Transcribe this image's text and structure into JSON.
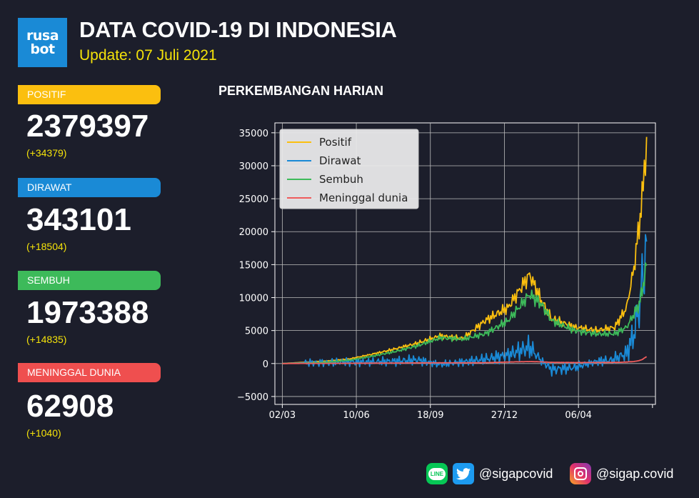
{
  "header": {
    "logo_line1": "rusa",
    "logo_line2": "bot",
    "title": "DATA COVID-19 DI INDONESIA",
    "update": "Update: 07 Juli 2021"
  },
  "stats": [
    {
      "label": "POSITIF",
      "value": "2379397",
      "delta": "(+34379)",
      "color": "#fbbf0f"
    },
    {
      "label": "DIRAWAT",
      "value": "343101",
      "delta": "(+18504)",
      "color": "#1a8ad6"
    },
    {
      "label": "SEMBUH",
      "value": "1973388",
      "delta": "(+14835)",
      "color": "#3dba5a"
    },
    {
      "label": "MENINGGAL DUNIA",
      "value": "62908",
      "delta": "(+1040)",
      "color": "#ef4f4f"
    }
  ],
  "chart_title": "PERKEMBANGAN HARIAN",
  "chart_data": {
    "type": "line",
    "title": "PERKEMBANGAN HARIAN",
    "xlabel": "",
    "ylabel": "",
    "x_start": "2020-03-02",
    "x_end": "2021-07-07",
    "xticks": [
      "02/03",
      "10/06",
      "18/09",
      "27/12",
      "06/04"
    ],
    "ylim": [
      -6200,
      36500
    ],
    "yticks": [
      -5000,
      0,
      5000,
      10000,
      15000,
      20000,
      25000,
      30000,
      35000
    ],
    "grid": true,
    "legend": "top-left",
    "series": [
      {
        "name": "Positif",
        "color": "#fbbf0f",
        "x": [
          "2020-03-02",
          "2020-04-01",
          "2020-05-01",
          "2020-06-01",
          "2020-07-01",
          "2020-08-01",
          "2020-09-01",
          "2020-10-01",
          "2020-11-01",
          "2020-12-01",
          "2021-01-01",
          "2021-01-30",
          "2021-02-15",
          "2021-03-01",
          "2021-04-01",
          "2021-05-01",
          "2021-05-25",
          "2021-06-10",
          "2021-06-20",
          "2021-06-27",
          "2021-07-01",
          "2021-07-07"
        ],
        "y": [
          2,
          200,
          400,
          700,
          1400,
          2200,
          3100,
          4200,
          3800,
          6500,
          8500,
          13500,
          9500,
          6800,
          5500,
          5000,
          5500,
          8500,
          14500,
          21000,
          25000,
          34379
        ]
      },
      {
        "name": "Dirawat",
        "color": "#1a8ad6",
        "x": [
          "2020-03-02",
          "2020-04-01",
          "2020-05-01",
          "2020-06-01",
          "2020-07-01",
          "2020-08-01",
          "2020-09-01",
          "2020-10-01",
          "2020-11-01",
          "2020-12-01",
          "2021-01-01",
          "2021-01-30",
          "2021-02-15",
          "2021-03-01",
          "2021-04-01",
          "2021-05-01",
          "2021-05-20",
          "2021-06-10",
          "2021-06-20",
          "2021-06-27",
          "2021-07-01",
          "2021-07-07"
        ],
        "y": [
          2,
          120,
          150,
          250,
          250,
          350,
          550,
          -150,
          250,
          650,
          1300,
          2500,
          400,
          -900,
          -600,
          350,
          500,
          1500,
          4500,
          8500,
          12000,
          18504
        ]
      },
      {
        "name": "Sembuh",
        "color": "#3dba5a",
        "x": [
          "2020-03-02",
          "2020-04-01",
          "2020-05-01",
          "2020-06-01",
          "2020-07-01",
          "2020-08-01",
          "2020-09-01",
          "2020-10-01",
          "2020-11-01",
          "2020-12-01",
          "2021-01-01",
          "2021-01-30",
          "2021-02-15",
          "2021-03-01",
          "2021-04-01",
          "2021-05-01",
          "2021-05-25",
          "2021-06-10",
          "2021-06-20",
          "2021-06-27",
          "2021-07-01",
          "2021-07-07"
        ],
        "y": [
          2,
          50,
          200,
          500,
          1100,
          1800,
          2700,
          3900,
          3700,
          4500,
          6500,
          10500,
          9000,
          6500,
          5000,
          4500,
          4500,
          5500,
          7500,
          9000,
          11000,
          14835
        ]
      },
      {
        "name": "Meninggal dunia",
        "color": "#ef5b5b",
        "x": [
          "2020-03-02",
          "2020-04-01",
          "2020-05-01",
          "2020-06-01",
          "2020-07-01",
          "2020-08-01",
          "2020-09-01",
          "2020-10-01",
          "2020-11-01",
          "2020-12-01",
          "2021-01-01",
          "2021-01-30",
          "2021-02-15",
          "2021-03-01",
          "2021-04-01",
          "2021-05-01",
          "2021-06-01",
          "2021-06-20",
          "2021-06-27",
          "2021-07-01",
          "2021-07-07"
        ],
        "y": [
          0,
          20,
          30,
          40,
          60,
          70,
          100,
          110,
          100,
          130,
          230,
          300,
          250,
          180,
          150,
          150,
          180,
          300,
          450,
          600,
          1040
        ]
      }
    ]
  },
  "footer": {
    "twitter_handle": "@sigapcovid",
    "instagram_handle": "@sigap.covid",
    "line_label": "LINE",
    "line_icon": "line-icon",
    "twitter_icon": "twitter-icon",
    "instagram_icon": "instagram-icon"
  }
}
